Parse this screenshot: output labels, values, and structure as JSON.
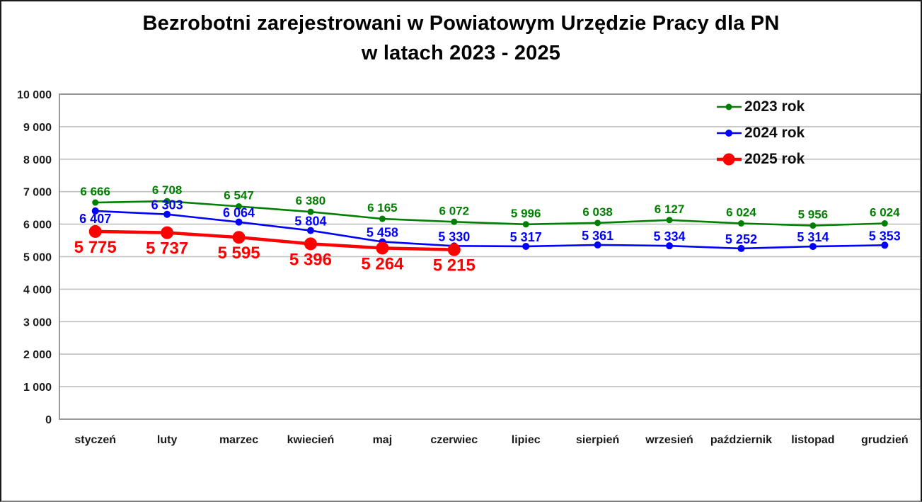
{
  "chart": {
    "title_line1": "Bezrobotni zarejestrowani w Powiatowym Urzędzie Pracy dla PN",
    "title_line2": "w latach 2023 - 2025"
  },
  "colors": {
    "series_2023": "#008000",
    "series_2024": "#0000FF",
    "series_2025": "#FF0000",
    "gridline": "#BFBFBF",
    "plot_border": "#808080",
    "text": "#1a1a1a"
  },
  "chart_data": {
    "type": "line",
    "title": "Bezrobotni zarejestrowani w Powiatowym Urzędzie Pracy dla PN w latach 2023 - 2025",
    "categories": [
      "styczeń",
      "luty",
      "marzec",
      "kwiecień",
      "maj",
      "czerwiec",
      "lipiec",
      "sierpień",
      "wrzesień",
      "październik",
      "listopad",
      "grudzień"
    ],
    "y_axis": {
      "min": 0,
      "max": 10000,
      "step": 1000,
      "tick_labels": [
        "0",
        "1 000",
        "2 000",
        "3 000",
        "4 000",
        "5 000",
        "6 000",
        "7 000",
        "8 000",
        "9 000",
        "10 000"
      ]
    },
    "grid": true,
    "legend_position": "top-right-inside",
    "series": [
      {
        "name": "2023 rok",
        "color": "#008000",
        "values": [
          6666,
          6708,
          6547,
          6380,
          6165,
          6072,
          5996,
          6038,
          6127,
          6024,
          5956,
          6024
        ],
        "labels": [
          "6 666",
          "6 708",
          "6 547",
          "6 380",
          "6 165",
          "6 072",
          "5 996",
          "6 038",
          "6 127",
          "6 024",
          "5 956",
          "6 024"
        ],
        "label_position": "above"
      },
      {
        "name": "2024 rok",
        "color": "#0000FF",
        "values": [
          6407,
          6303,
          6064,
          5804,
          5458,
          5330,
          5317,
          5361,
          5334,
          5252,
          5314,
          5353
        ],
        "labels": [
          "6 407",
          "6 303",
          "6 064",
          "5 804",
          "5 458",
          "5 330",
          "5 317",
          "5 361",
          "5 334",
          "5 252",
          "5 314",
          "5 353"
        ],
        "label_position": "above",
        "first_label_below": true
      },
      {
        "name": "2025 rok",
        "color": "#FF0000",
        "values": [
          5775,
          5737,
          5595,
          5396,
          5264,
          5215
        ],
        "labels": [
          "5 775",
          "5 737",
          "5 595",
          "5 396",
          "5 264",
          "5 215"
        ],
        "label_position": "below"
      }
    ]
  }
}
